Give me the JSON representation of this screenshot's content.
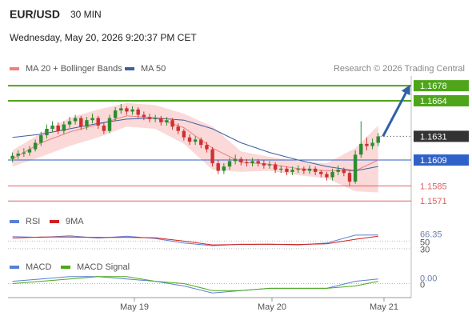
{
  "header": {
    "symbol": "EUR/USD",
    "timeframe": "30 MIN",
    "datetime": "Wednesday, May 20, 2026 9:20:37 PM CET",
    "credit": "Research © 2026 Trading Central"
  },
  "chart_data": [
    {
      "type": "candlestick",
      "up_color": "#2e8b2e",
      "down_color": "#d03030",
      "xlim": [
        -0.5,
        69.5
      ],
      "ylim": [
        1.1563,
        1.1687
      ],
      "xticks": [
        {
          "value": 21.34,
          "label": "May 19"
        },
        {
          "value": 45.42,
          "label": "May 20"
        },
        {
          "value": 65.02,
          "label": "May 21"
        }
      ],
      "candles": [
        [
          1.161,
          1.1616,
          1.1607,
          1.1613
        ],
        [
          1.1613,
          1.1618,
          1.161,
          1.1615
        ],
        [
          1.1615,
          1.162,
          1.1612,
          1.1616
        ],
        [
          1.1616,
          1.1622,
          1.1613,
          1.1619
        ],
        [
          1.1619,
          1.1628,
          1.1617,
          1.1625
        ],
        [
          1.1625,
          1.1635,
          1.1622,
          1.1632
        ],
        [
          1.1632,
          1.1642,
          1.1629,
          1.1638
        ],
        [
          1.1638,
          1.1645,
          1.1635,
          1.1641
        ],
        [
          1.1641,
          1.1644,
          1.1633,
          1.1636
        ],
        [
          1.1636,
          1.1645,
          1.1633,
          1.1642
        ],
        [
          1.1642,
          1.1649,
          1.1639,
          1.1645
        ],
        [
          1.1645,
          1.1651,
          1.1642,
          1.1648
        ],
        [
          1.1648,
          1.165,
          1.1637,
          1.164
        ],
        [
          1.164,
          1.1649,
          1.1637,
          1.1646
        ],
        [
          1.1646,
          1.1652,
          1.1643,
          1.1648
        ],
        [
          1.1648,
          1.165,
          1.1638,
          1.1641
        ],
        [
          1.1641,
          1.1644,
          1.1633,
          1.1636
        ],
        [
          1.1636,
          1.1651,
          1.1634,
          1.1648
        ],
        [
          1.1648,
          1.1658,
          1.1645,
          1.1655
        ],
        [
          1.1655,
          1.1661,
          1.1652,
          1.1657
        ],
        [
          1.1657,
          1.1659,
          1.1651,
          1.1654
        ],
        [
          1.1654,
          1.1659,
          1.1651,
          1.1656
        ],
        [
          1.1656,
          1.1658,
          1.1648,
          1.1651
        ],
        [
          1.1651,
          1.1654,
          1.1646,
          1.1649
        ],
        [
          1.1649,
          1.1652,
          1.1644,
          1.1647
        ],
        [
          1.1647,
          1.1651,
          1.1644,
          1.1648
        ],
        [
          1.1648,
          1.165,
          1.1641,
          1.1644
        ],
        [
          1.1644,
          1.1649,
          1.1641,
          1.1646
        ],
        [
          1.1646,
          1.1648,
          1.1637,
          1.164
        ],
        [
          1.164,
          1.1643,
          1.1633,
          1.1636
        ],
        [
          1.1636,
          1.1638,
          1.1627,
          1.163
        ],
        [
          1.163,
          1.1633,
          1.1623,
          1.1626
        ],
        [
          1.1626,
          1.1631,
          1.1623,
          1.1628
        ],
        [
          1.1628,
          1.163,
          1.162,
          1.1623
        ],
        [
          1.1623,
          1.1626,
          1.1616,
          1.1619
        ],
        [
          1.1619,
          1.1621,
          1.1603,
          1.1606
        ],
        [
          1.1606,
          1.1609,
          1.1596,
          1.1599
        ],
        [
          1.1599,
          1.1606,
          1.1596,
          1.1603
        ],
        [
          1.1603,
          1.1611,
          1.16,
          1.1608
        ],
        [
          1.1608,
          1.1614,
          1.1605,
          1.161
        ],
        [
          1.161,
          1.1612,
          1.1604,
          1.1607
        ],
        [
          1.1607,
          1.161,
          1.1603,
          1.1606
        ],
        [
          1.1606,
          1.1611,
          1.1603,
          1.1608
        ],
        [
          1.1608,
          1.161,
          1.1603,
          1.1606
        ],
        [
          1.1606,
          1.1609,
          1.1601,
          1.1604
        ],
        [
          1.1604,
          1.1608,
          1.1601,
          1.1605
        ],
        [
          1.1605,
          1.1607,
          1.1597,
          1.16
        ],
        [
          1.16,
          1.1604,
          1.1597,
          1.1601
        ],
        [
          1.1601,
          1.1603,
          1.1595,
          1.1598
        ],
        [
          1.1598,
          1.1603,
          1.1595,
          1.16
        ],
        [
          1.16,
          1.1604,
          1.1597,
          1.1601
        ],
        [
          1.1601,
          1.1603,
          1.1596,
          1.1599
        ],
        [
          1.1599,
          1.1604,
          1.1596,
          1.1601
        ],
        [
          1.1601,
          1.1603,
          1.1595,
          1.1598
        ],
        [
          1.1598,
          1.16,
          1.1593,
          1.1596
        ],
        [
          1.1596,
          1.1598,
          1.159,
          1.1593
        ],
        [
          1.1593,
          1.1601,
          1.159,
          1.1598
        ],
        [
          1.1598,
          1.1604,
          1.1595,
          1.16
        ],
        [
          1.16,
          1.1602,
          1.1594,
          1.1597
        ],
        [
          1.1597,
          1.1599,
          1.1585,
          1.1589
        ],
        [
          1.1589,
          1.1618,
          1.1587,
          1.1614
        ],
        [
          1.1614,
          1.1645,
          1.1611,
          1.1624
        ],
        [
          1.1624,
          1.163,
          1.1618,
          1.1622
        ],
        [
          1.1622,
          1.1629,
          1.1619,
          1.1625
        ],
        [
          1.1625,
          1.1634,
          1.1622,
          1.1631
        ]
      ],
      "x": [
        0,
        5,
        10,
        15,
        20,
        25,
        30,
        35,
        40,
        45,
        50,
        55,
        60,
        64
      ],
      "series": [
        {
          "name": "MA 20 + Bollinger Bands",
          "color": "#f07f7f",
          "band_color": "#f9c9c9",
          "values": [
            1.161,
            1.1625,
            1.1635,
            1.1642,
            1.165,
            1.1648,
            1.1639,
            1.162,
            1.1607,
            1.1605,
            1.1601,
            1.1599,
            1.1599,
            1.1609
          ],
          "upper": [
            1.1618,
            1.1634,
            1.1648,
            1.1656,
            1.1662,
            1.166,
            1.1652,
            1.164,
            1.1617,
            1.1612,
            1.1608,
            1.1606,
            1.162,
            1.1641
          ],
          "lower": [
            1.1603,
            1.1612,
            1.1622,
            1.163,
            1.164,
            1.1638,
            1.1624,
            1.16,
            1.1598,
            1.1599,
            1.1595,
            1.1592,
            1.158,
            1.1579
          ]
        },
        {
          "name": "MA 50",
          "color": "#3f5f9f",
          "values": [
            1.163,
            1.1633,
            1.1638,
            1.1643,
            1.1647,
            1.1648,
            1.1646,
            1.1638,
            1.1625,
            1.1616,
            1.1609,
            1.1603,
            1.1599,
            1.1603
          ]
        }
      ],
      "levels": [
        {
          "value": 1.1678,
          "color": "#4ea51a",
          "boxed": true,
          "width": 2
        },
        {
          "value": 1.1664,
          "color": "#4ea51a",
          "boxed": true,
          "width": 2
        },
        {
          "value": 1.1631,
          "color": "#333333",
          "boxed": true,
          "dotted": true
        },
        {
          "value": 1.1609,
          "color": "#2f62c8",
          "boxed": true,
          "width": 1
        },
        {
          "value": 1.1585,
          "color": "#e06060",
          "boxed": false,
          "width": 1
        },
        {
          "value": 1.1571,
          "color": "#e06060",
          "boxed": false,
          "width": 1
        }
      ]
    },
    {
      "type": "line",
      "xlim": [
        -0.5,
        69.5
      ],
      "ylim": [
        19,
        87
      ],
      "yticks": [
        30,
        50
      ],
      "x": [
        0,
        5,
        10,
        15,
        20,
        25,
        30,
        35,
        40,
        45,
        50,
        55,
        60,
        64
      ],
      "series": [
        {
          "name": "RSI",
          "color": "#5b7fd6",
          "values": [
            62,
            60,
            64,
            58,
            63,
            57,
            45,
            38,
            42,
            42,
            40,
            45,
            66,
            66.35
          ]
        },
        {
          "name": "9MA",
          "color": "#d02020",
          "values": [
            58,
            61,
            61,
            60,
            60,
            59,
            50,
            40,
            41,
            42,
            41,
            43,
            55,
            63
          ]
        }
      ]
    },
    {
      "type": "line",
      "xlim": [
        -0.5,
        69.5
      ],
      "ylim": [
        -0.0006,
        0.0005
      ],
      "yticks": [
        0
      ],
      "x": [
        0,
        5,
        10,
        15,
        20,
        25,
        30,
        35,
        40,
        45,
        50,
        55,
        60,
        64
      ],
      "series": [
        {
          "name": "MACD",
          "color": "#5b7fd6",
          "values": [
            0.0001,
            0.0002,
            0.0003,
            0.0003,
            0.0002,
            0.0001,
            -0.0001,
            -0.0004,
            -0.0003,
            -0.0002,
            -0.0002,
            -0.0002,
            0.0001,
            0.0002
          ],
          "value_labels": [
            null,
            null,
            null,
            null,
            null,
            null,
            null,
            null,
            null,
            null,
            null,
            null,
            null,
            "0.00"
          ]
        },
        {
          "name": "MACD Signal",
          "color": "#4caa1a",
          "values": [
            0.0,
            0.0001,
            0.0002,
            0.0003,
            0.0003,
            0.0001,
            0.0,
            -0.0003,
            -0.0003,
            -0.0002,
            -0.0002,
            -0.0002,
            -0.0001,
            0.0001
          ]
        }
      ]
    }
  ]
}
